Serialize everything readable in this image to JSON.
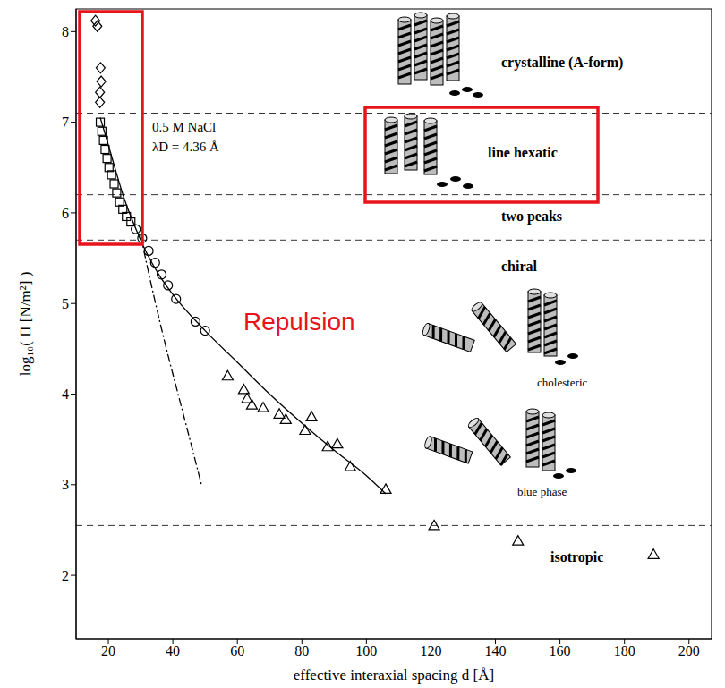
{
  "chart_data": {
    "type": "scatter",
    "x_label": "effective interaxial spacing d [Å]",
    "y_label": "log₁₀( Π [N/m²] )",
    "xlim": [
      10,
      207
    ],
    "xticks": [
      20,
      40,
      60,
      80,
      100,
      120,
      140,
      160,
      180,
      200
    ],
    "ylim": [
      1.3,
      8.25
    ],
    "yticks": [
      2,
      3,
      4,
      5,
      6,
      7,
      8
    ],
    "grid": false,
    "series": [
      {
        "type": "scatter",
        "marker": "diamond",
        "color": "#000000",
        "x": [
          16.0,
          16.6,
          17.6,
          17.8,
          17.4,
          17.4
        ],
        "values": [
          8.12,
          8.06,
          7.6,
          7.45,
          7.33,
          7.22
        ]
      },
      {
        "type": "scatter",
        "marker": "square",
        "color": "#000000",
        "x": [
          17.5,
          18.0,
          18.5,
          19.0,
          19.6,
          20.2,
          21.0,
          21.8,
          22.6,
          23.5,
          24.5,
          25.6,
          27.0
        ],
        "values": [
          7.0,
          6.9,
          6.8,
          6.7,
          6.6,
          6.5,
          6.42,
          6.32,
          6.22,
          6.12,
          6.04,
          5.96,
          5.9
        ]
      },
      {
        "type": "scatter",
        "marker": "circle",
        "color": "#000000",
        "x": [
          28.5,
          30.5,
          32.5,
          34.5,
          36.5,
          38.5,
          41.0,
          47.0,
          50.0
        ],
        "values": [
          5.82,
          5.72,
          5.58,
          5.45,
          5.32,
          5.2,
          5.05,
          4.8,
          4.7
        ]
      },
      {
        "type": "scatter",
        "marker": "triangle",
        "color": "#000000",
        "x": [
          57,
          62,
          63,
          64.5,
          68,
          73,
          75,
          81,
          83,
          88,
          91,
          95,
          106,
          121,
          147,
          189
        ],
        "values": [
          4.2,
          4.05,
          3.95,
          3.88,
          3.85,
          3.78,
          3.72,
          3.6,
          3.75,
          3.42,
          3.45,
          3.2,
          2.95,
          2.55,
          2.38,
          2.23
        ]
      },
      {
        "type": "line",
        "line_style": "solid",
        "color": "#000000",
        "x": [
          17.5,
          20,
          22,
          25,
          28,
          32,
          36,
          40,
          50,
          60,
          70,
          80,
          90,
          100,
          106
        ],
        "values": [
          7.05,
          6.75,
          6.5,
          6.15,
          5.87,
          5.55,
          5.3,
          5.1,
          4.7,
          4.35,
          4.0,
          3.68,
          3.38,
          3.1,
          2.9
        ]
      },
      {
        "type": "line",
        "line_style": "dashdot",
        "color": "#000000",
        "x": [
          30,
          34,
          38,
          42,
          46,
          49
        ],
        "values": [
          5.75,
          5.1,
          4.5,
          3.95,
          3.4,
          2.98
        ]
      }
    ],
    "hlines": [
      7.1,
      6.2,
      5.7,
      2.55
    ],
    "phases": [
      "crystalline (A-form)",
      "line hexatic",
      "two peaks",
      "chiral",
      "cholesteric",
      "blue phase",
      "isotropic"
    ],
    "annotations": [
      {
        "text": "0.5 M NaCl",
        "color": "#000000"
      },
      {
        "text": "λD = 4.36 Å",
        "color": "#000000"
      },
      {
        "text": "Repulsion",
        "color": "#e8141b"
      }
    ]
  }
}
